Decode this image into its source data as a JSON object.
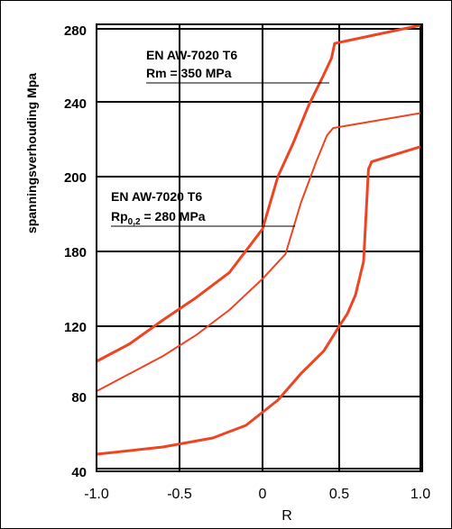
{
  "chart_data": {
    "type": "line",
    "title": "",
    "xlabel": "R",
    "ylabel": "spanningsverhouding Mpa",
    "xlim": [
      -1.0,
      1.0
    ],
    "y_tick_labels": [
      "40",
      "80",
      "120",
      "180",
      "200",
      "240",
      "280"
    ],
    "x_tick_labels": [
      "-1.0",
      "-0.5",
      "0",
      "0.5",
      "1.0"
    ],
    "grid": true,
    "legend": "none",
    "series": [
      {
        "x": [
          -1.0,
          -0.8,
          -0.6,
          -0.4,
          -0.2,
          0.0,
          0.1,
          0.2,
          0.3,
          0.4,
          0.45,
          0.47,
          1.0
        ],
        "y": [
          100,
          110,
          125,
          143,
          163,
          186,
          200,
          218,
          238,
          255,
          264,
          272,
          282
        ],
        "color": "#ee4422",
        "width": 3
      },
      {
        "x": [
          -1.0,
          -0.6,
          -0.4,
          -0.2,
          0.0,
          0.15,
          0.25,
          0.35,
          0.42,
          0.46,
          1.0
        ],
        "y": [
          83,
          103,
          115,
          133,
          158,
          178,
          193,
          208,
          222,
          226,
          234
        ],
        "color": "#ee4422",
        "width": 2
      },
      {
        "x": [
          -1.0,
          -0.6,
          -0.3,
          -0.1,
          0.1,
          0.25,
          0.4,
          0.5,
          0.55,
          0.6,
          0.65,
          0.68,
          0.7,
          1.0
        ],
        "y": [
          48,
          52,
          57,
          64,
          78,
          93,
          106,
          120,
          130,
          145,
          172,
          204,
          208,
          216
        ],
        "color": "#ee4422",
        "width": 3
      }
    ],
    "annotations": [
      {
        "line1": "EN AW-7020 T6",
        "line2": "Rm = 350 MPa"
      },
      {
        "line1": "EN AW-7020 T6",
        "line2_main": "Rp",
        "line2_sub": "0,2",
        "line2_rest": " = 280 MPa"
      }
    ],
    "colors": {
      "curve": "#ee4422",
      "grid": "#000000"
    }
  }
}
